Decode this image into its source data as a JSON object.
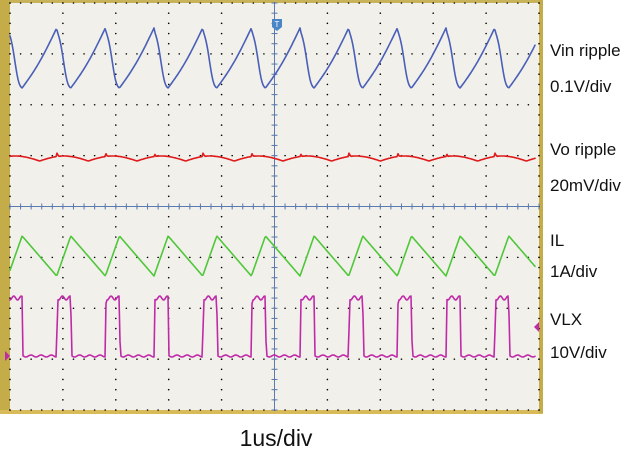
{
  "chart_data": {
    "type": "line",
    "time_label": "1us/div",
    "series": [
      {
        "name": "Vin ripple",
        "scale": "0.1V/div",
        "color": "#4a5fb8"
      },
      {
        "name": "Vo ripple",
        "scale": "20mV/div",
        "color": "#e01a1a"
      },
      {
        "name": "IL",
        "scale": "1A/div",
        "color": "#4fc73a"
      },
      {
        "name": "VLX",
        "scale": "10V/div",
        "color": "#c02aa8"
      }
    ],
    "grid": true,
    "x_divisions": 10,
    "y_divisions": 8,
    "switching_period_div": 0.92,
    "duty_cycle": 0.29,
    "trigger_marker": "T"
  }
}
